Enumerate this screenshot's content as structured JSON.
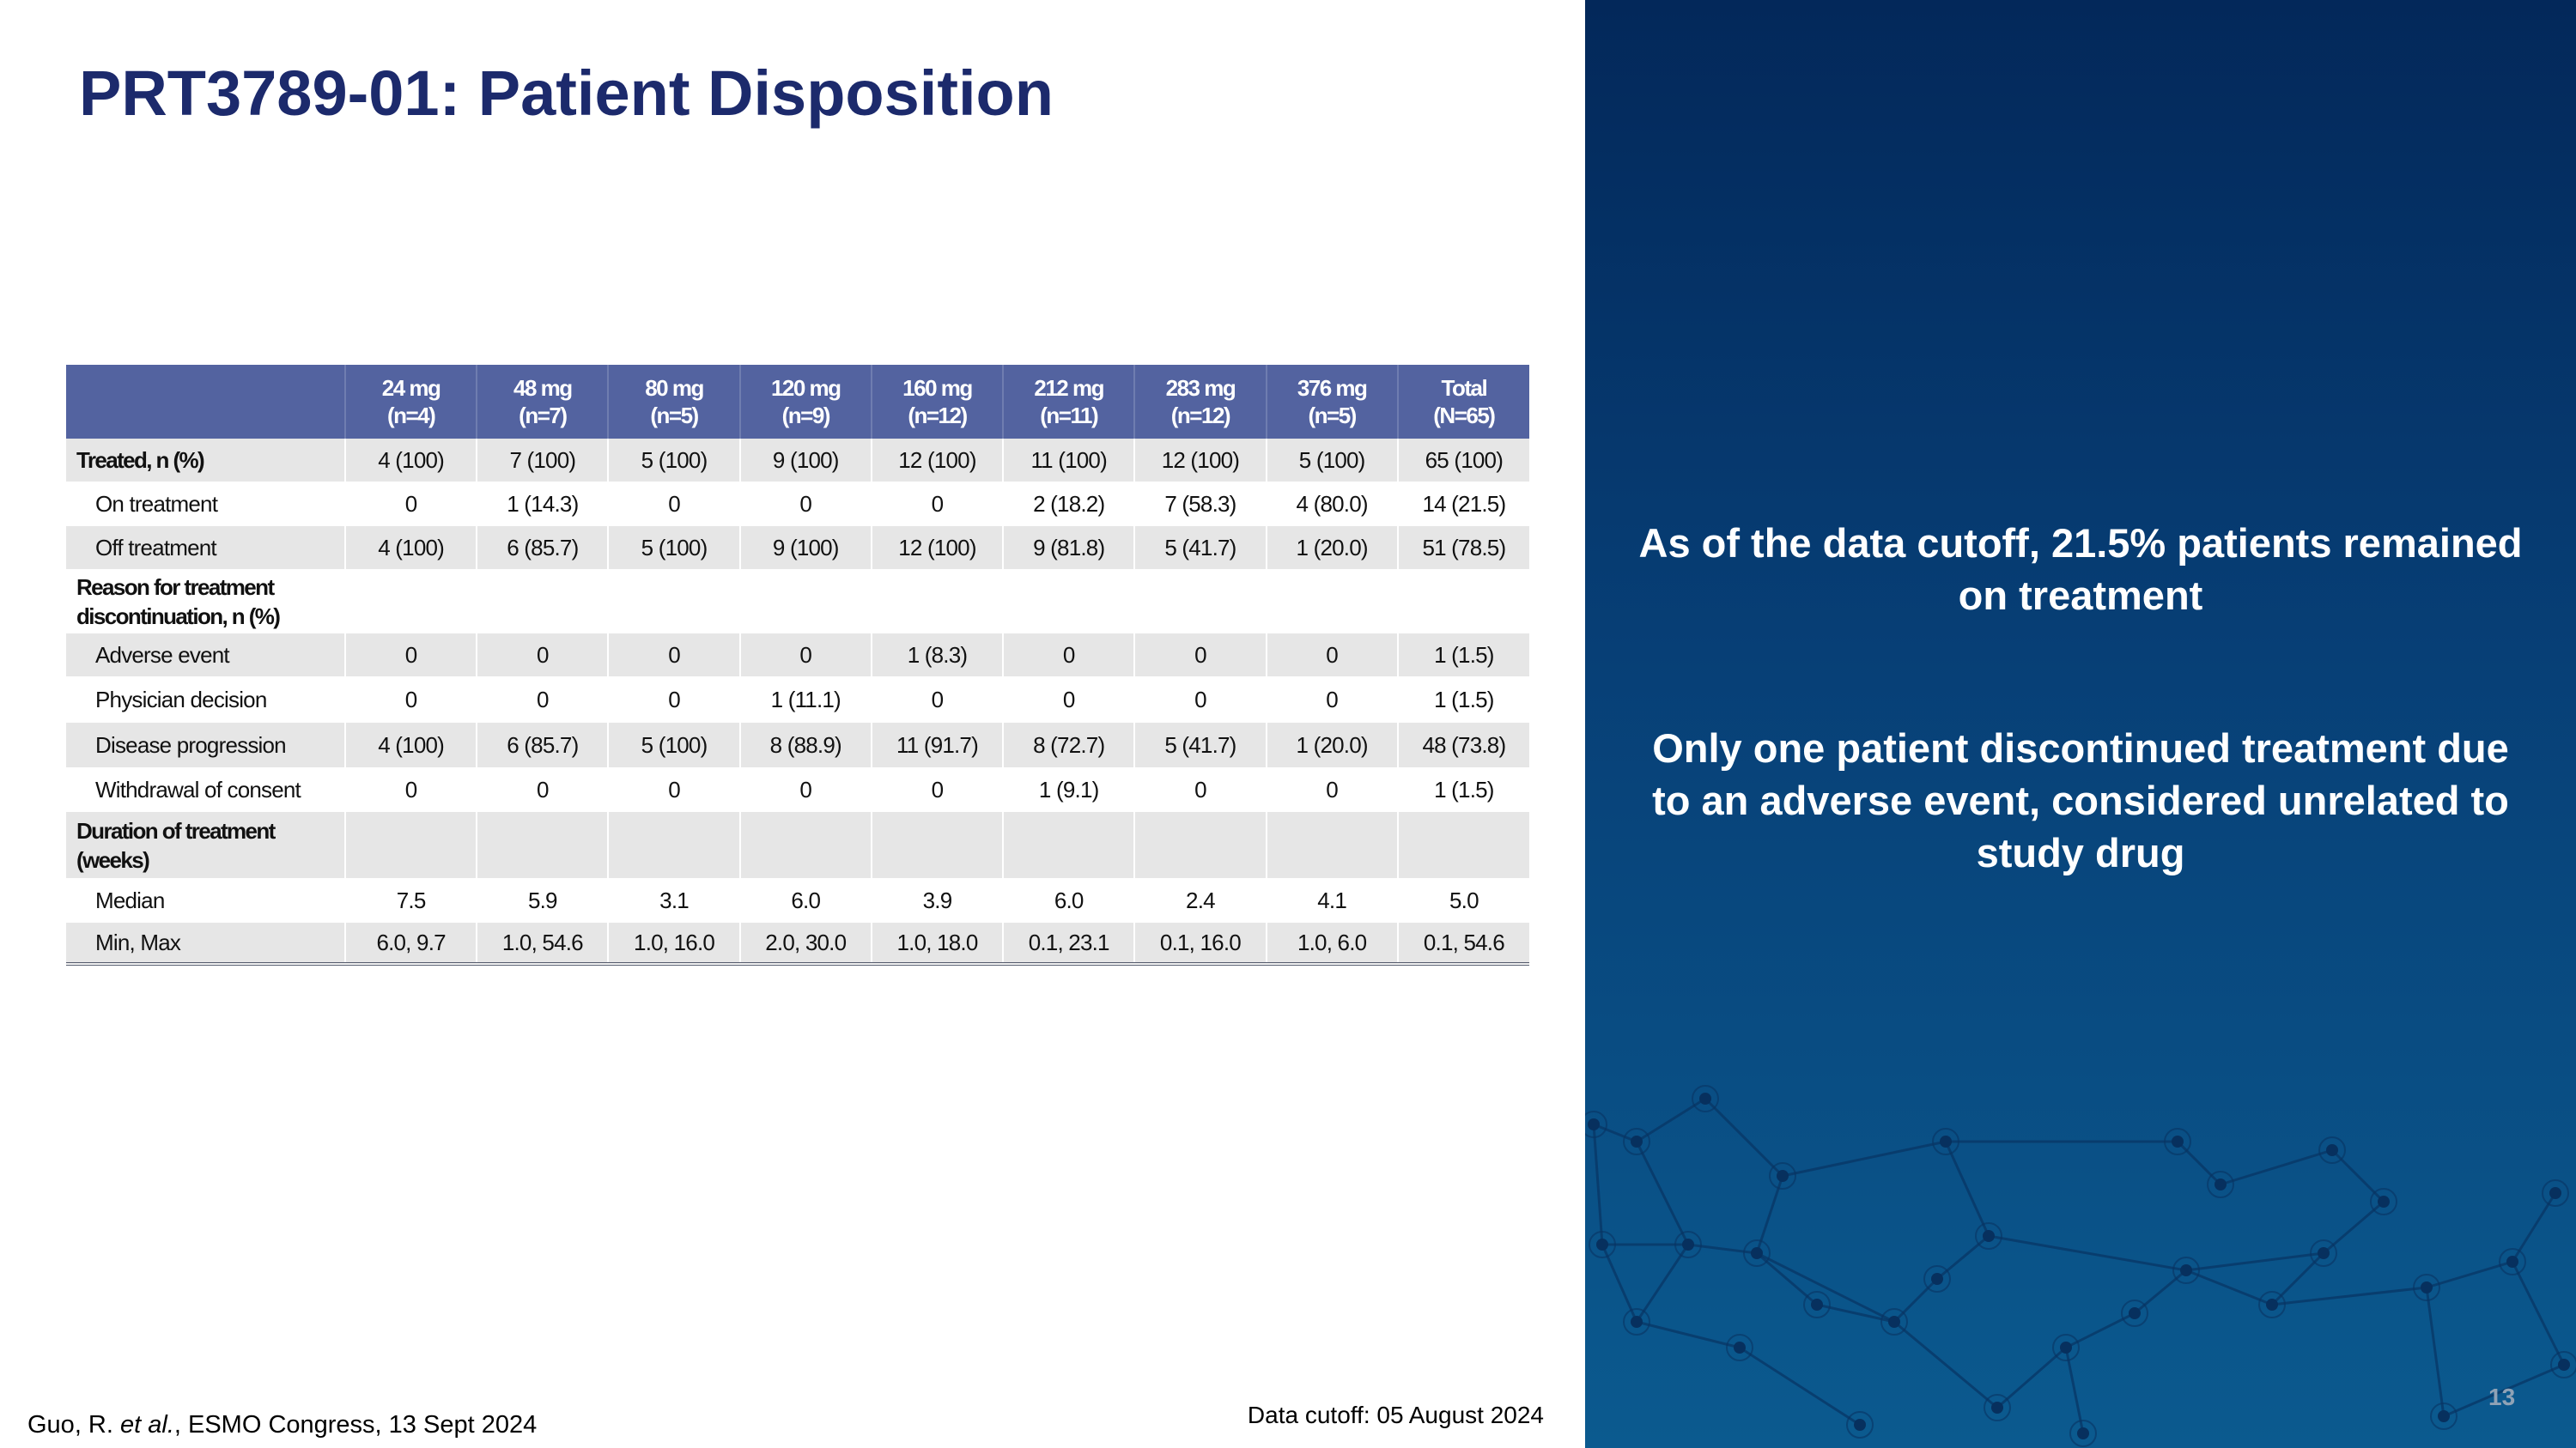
{
  "title": "PRT3789-01: Patient Disposition",
  "table": {
    "headers": [
      {
        "l1": "",
        "l2": ""
      },
      {
        "l1": "24 mg",
        "l2": "(n=4)"
      },
      {
        "l1": "48 mg",
        "l2": "(n=7)"
      },
      {
        "l1": "80 mg",
        "l2": "(n=5)"
      },
      {
        "l1": "120 mg",
        "l2": "(n=9)"
      },
      {
        "l1": "160 mg",
        "l2": "(n=12)"
      },
      {
        "l1": "212 mg",
        "l2": "(n=11)"
      },
      {
        "l1": "283 mg",
        "l2": "(n=12)"
      },
      {
        "l1": "376 mg",
        "l2": "(n=5)"
      },
      {
        "l1": "Total",
        "l2": "(N=65)"
      }
    ],
    "rows": [
      {
        "label": "Treated, n (%)",
        "kind": "lab",
        "shade": true,
        "h": 50,
        "cells": [
          "4 (100)",
          "7 (100)",
          "5 (100)",
          "9 (100)",
          "12 (100)",
          "11 (100)",
          "12 (100)",
          "5 (100)",
          "65 (100)"
        ]
      },
      {
        "label": "On treatment",
        "kind": "sub",
        "shade": false,
        "h": 52,
        "cells": [
          "0",
          "1 (14.3)",
          "0",
          "0",
          "0",
          "2 (18.2)",
          "7 (58.3)",
          "4 (80.0)",
          "14 (21.5)"
        ]
      },
      {
        "label": "Off treatment",
        "kind": "sub",
        "shade": true,
        "h": 50,
        "cells": [
          "4 (100)",
          "6 (85.7)",
          "5 (100)",
          "9 (100)",
          "12 (100)",
          "9 (81.8)",
          "5 (41.7)",
          "1 (20.0)",
          "51 (78.5)"
        ]
      },
      {
        "label": "Reason for treatment discontinuation, n (%)",
        "kind": "lab",
        "shade": false,
        "h": 75,
        "cells": [
          "",
          "",
          "",
          "",
          "",
          "",
          "",
          "",
          ""
        ]
      },
      {
        "label": "Adverse event",
        "kind": "sub",
        "shade": true,
        "h": 50,
        "cells": [
          "0",
          "0",
          "0",
          "0",
          "1 (8.3)",
          "0",
          "0",
          "0",
          "1 (1.5)"
        ]
      },
      {
        "label": "Physician decision",
        "kind": "sub",
        "shade": false,
        "h": 54,
        "cells": [
          "0",
          "0",
          "0",
          "1 (11.1)",
          "0",
          "0",
          "0",
          "0",
          "1 (1.5)"
        ]
      },
      {
        "label": "Disease progression",
        "kind": "sub",
        "shade": true,
        "h": 52,
        "cells": [
          "4 (100)",
          "6 (85.7)",
          "5 (100)",
          "8 (88.9)",
          "11 (91.7)",
          "8 (72.7)",
          "5 (41.7)",
          "1 (20.0)",
          "48 (73.8)"
        ]
      },
      {
        "label": "Withdrawal of consent",
        "kind": "sub",
        "shade": false,
        "h": 52,
        "cells": [
          "0",
          "0",
          "0",
          "0",
          "0",
          "1 (9.1)",
          "0",
          "0",
          "1 (1.5)"
        ]
      },
      {
        "label": "Duration of treatment (weeks)",
        "kind": "lab",
        "shade": true,
        "h": 77,
        "cells": [
          "",
          "",
          "",
          "",
          "",
          "",
          "",
          "",
          ""
        ]
      },
      {
        "label": "Median",
        "kind": "sub",
        "shade": false,
        "h": 52,
        "cells": [
          "7.5",
          "5.9",
          "3.1",
          "6.0",
          "3.9",
          "6.0",
          "2.4",
          "4.1",
          "5.0"
        ]
      },
      {
        "label": "Min, Max",
        "kind": "sub",
        "shade": true,
        "h": 48,
        "cells": [
          "6.0, 9.7",
          "1.0, 54.6",
          "1.0, 16.0",
          "2.0, 30.0",
          "1.0, 18.0",
          "0.1, 23.1",
          "0.1, 16.0",
          "1.0, 6.0",
          "0.1, 54.6"
        ]
      }
    ]
  },
  "panel": {
    "message1": "As of the data cutoff, 21.5% patients remained on treatment",
    "message2": "Only one patient discontinued treatment due to an adverse event, considered unrelated to study drug",
    "page_number": "13"
  },
  "footer": {
    "citation_pre": "Guo, R. ",
    "citation_italic": "et al.",
    "citation_post": ", ESMO Congress, 13 Sept 2024",
    "data_cutoff": "Data cutoff: 05 August 2024"
  },
  "colors": {
    "title": "#1c2a6c",
    "table_header": "#5363a0",
    "row_shade": "#e6e6e6",
    "panel_top": "#03285a",
    "panel_bottom": "#0b5a8f"
  }
}
